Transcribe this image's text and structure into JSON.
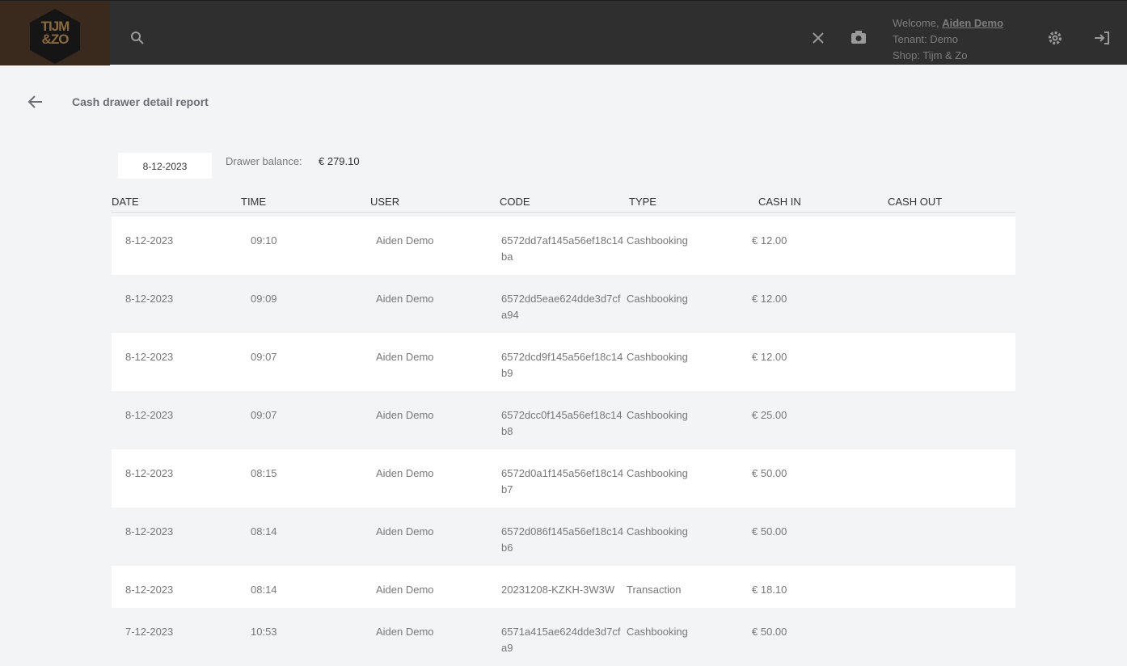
{
  "header": {
    "logo": "TIJM &ZO",
    "welcome_label": "Welcome,",
    "user_name": "Aiden Demo",
    "tenant": "Tenant: Demo",
    "shop": "Shop: Tijm & Zo"
  },
  "page": {
    "title": "Cash drawer detail report",
    "date_filter": "8-12-2023",
    "balance_label": "Drawer balance:",
    "balance_value": "€ 279.10"
  },
  "table": {
    "columns": [
      "DATE",
      "TIME",
      "USER",
      "CODE",
      "TYPE",
      "CASH IN",
      "CASH OUT"
    ],
    "rows": [
      [
        "8-12-2023",
        "09:10",
        "Aiden Demo",
        "6572dd7af145a56ef18c14ba",
        "Cashbooking",
        "€ 12.00"
      ],
      [
        "8-12-2023",
        "09:09",
        "Aiden Demo",
        "6572dd5eae624dde3d7cfa94",
        "Cashbooking",
        "€ 12.00"
      ],
      [
        "8-12-2023",
        "09:07",
        "Aiden Demo",
        "6572dcd9f145a56ef18c14b9",
        "Cashbooking",
        "€ 12.00"
      ],
      [
        "8-12-2023",
        "09:07",
        "Aiden Demo",
        "6572dcc0f145a56ef18c14b8",
        "Cashbooking",
        "€ 25.00"
      ],
      [
        "8-12-2023",
        "08:15",
        "Aiden Demo",
        "6572d0a1f145a56ef18c14b7",
        "Cashbooking",
        "€ 50.00"
      ],
      [
        "8-12-2023",
        "08:14",
        "Aiden Demo",
        "6572d086f145a56ef18c14b6",
        "Cashbooking",
        "€ 50.00"
      ],
      [
        "8-12-2023",
        "08:14",
        "Aiden Demo",
        "20231208-KZKH-3W3W",
        "Transaction",
        "€ 18.10"
      ],
      [
        "7-12-2023",
        "10:53",
        "Aiden Demo",
        "6571a415ae624dde3d7cfa9",
        "Cashbooking",
        "€ 50.00"
      ]
    ]
  }
}
